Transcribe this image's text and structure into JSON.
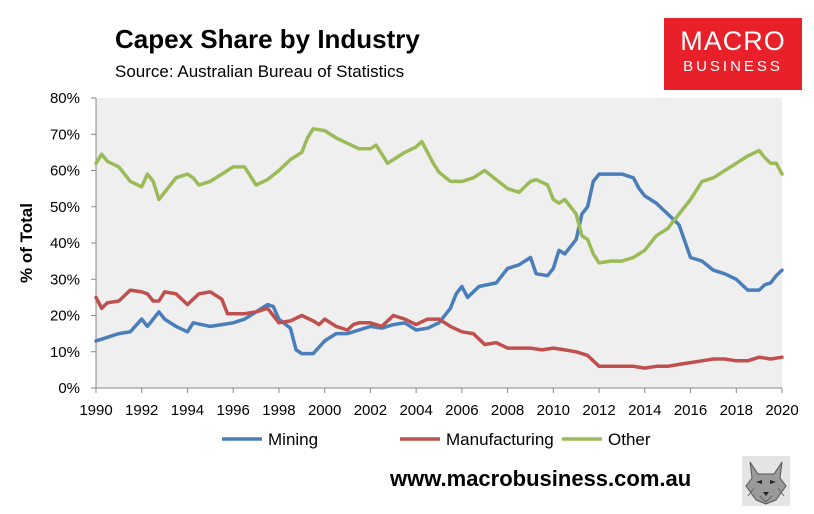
{
  "header": {
    "title": "Capex Share by Industry",
    "subtitle": "Source: Australian Bureau of Statistics"
  },
  "logo": {
    "line1": "MACRO",
    "line2": "BUSINESS",
    "color": "#e8202a"
  },
  "footer": {
    "website": "www.macrobusiness.com.au"
  },
  "chart_data": {
    "type": "line",
    "title": "Capex Share by Industry",
    "xlabel": "",
    "ylabel": "% of Total",
    "xlim": [
      1990,
      2020
    ],
    "ylim": [
      0,
      80
    ],
    "x_ticks": [
      1990,
      1992,
      1994,
      1996,
      1998,
      2000,
      2002,
      2004,
      2006,
      2008,
      2010,
      2012,
      2014,
      2016,
      2018,
      2020
    ],
    "x_tick_labels": [
      "1990",
      "1992",
      "1994",
      "1996",
      "1998",
      "2000",
      "2002",
      "2004",
      "2006",
      "2008",
      "2010",
      "2012",
      "2014",
      "2016",
      "2018",
      "2020"
    ],
    "y_ticks": [
      0,
      10,
      20,
      30,
      40,
      50,
      60,
      70,
      80
    ],
    "y_tick_labels": [
      "0%",
      "10%",
      "20%",
      "30%",
      "40%",
      "50%",
      "60%",
      "70%",
      "80%"
    ],
    "grid": false,
    "legend_position": "bottom",
    "series": [
      {
        "name": "Mining",
        "color": "#4a7ebb",
        "points": [
          [
            1990,
            13
          ],
          [
            1990.5,
            14
          ],
          [
            1991,
            15
          ],
          [
            1991.5,
            15.5
          ],
          [
            1992,
            19
          ],
          [
            1992.25,
            17
          ],
          [
            1992.75,
            21
          ],
          [
            1993,
            19
          ],
          [
            1993.5,
            17
          ],
          [
            1994,
            15.5
          ],
          [
            1994.25,
            18
          ],
          [
            1995,
            17
          ],
          [
            1995.5,
            17.5
          ],
          [
            1996,
            18
          ],
          [
            1996.5,
            19
          ],
          [
            1997,
            21
          ],
          [
            1997.5,
            23
          ],
          [
            1997.75,
            22.5
          ],
          [
            1998,
            19
          ],
          [
            1998.5,
            16.5
          ],
          [
            1998.75,
            10.5
          ],
          [
            1999,
            9.5
          ],
          [
            1999.5,
            9.5
          ],
          [
            2000,
            13
          ],
          [
            2000.5,
            15
          ],
          [
            2001,
            15
          ],
          [
            2001.5,
            16
          ],
          [
            2002,
            17
          ],
          [
            2002.5,
            16.5
          ],
          [
            2003,
            17.5
          ],
          [
            2003.5,
            18
          ],
          [
            2004,
            16
          ],
          [
            2004.5,
            16.5
          ],
          [
            2005,
            18
          ],
          [
            2005.5,
            22
          ],
          [
            2005.75,
            26
          ],
          [
            2006,
            28
          ],
          [
            2006.25,
            25
          ],
          [
            2006.75,
            28
          ],
          [
            2007.5,
            29
          ],
          [
            2008,
            33
          ],
          [
            2008.5,
            34
          ],
          [
            2009,
            36
          ],
          [
            2009.25,
            31.5
          ],
          [
            2009.75,
            31
          ],
          [
            2010,
            33
          ],
          [
            2010.25,
            38
          ],
          [
            2010.5,
            37
          ],
          [
            2011,
            41
          ],
          [
            2011.25,
            48
          ],
          [
            2011.5,
            50
          ],
          [
            2011.75,
            57
          ],
          [
            2012,
            59
          ],
          [
            2012.5,
            59
          ],
          [
            2013,
            59
          ],
          [
            2013.5,
            58
          ],
          [
            2013.75,
            55
          ],
          [
            2014,
            53
          ],
          [
            2014.5,
            51
          ],
          [
            2015,
            48
          ],
          [
            2015.5,
            45
          ],
          [
            2016,
            36
          ],
          [
            2016.5,
            35
          ],
          [
            2017,
            32.5
          ],
          [
            2017.5,
            31.5
          ],
          [
            2018,
            30
          ],
          [
            2018.5,
            27
          ],
          [
            2019,
            27
          ],
          [
            2019.25,
            28.5
          ],
          [
            2019.5,
            29
          ],
          [
            2019.75,
            31
          ],
          [
            2020,
            32.5
          ]
        ]
      },
      {
        "name": "Manufacturing",
        "color": "#c0504d",
        "points": [
          [
            1990,
            25
          ],
          [
            1990.25,
            22
          ],
          [
            1990.5,
            23.5
          ],
          [
            1991,
            24
          ],
          [
            1991.5,
            27
          ],
          [
            1992,
            26.5
          ],
          [
            1992.25,
            26
          ],
          [
            1992.5,
            24
          ],
          [
            1992.75,
            24
          ],
          [
            1993,
            26.5
          ],
          [
            1993.5,
            26
          ],
          [
            1994,
            23
          ],
          [
            1994.25,
            24.5
          ],
          [
            1994.5,
            26
          ],
          [
            1995,
            26.5
          ],
          [
            1995.5,
            24.5
          ],
          [
            1995.75,
            20.5
          ],
          [
            1996,
            20.5
          ],
          [
            1996.5,
            20.5
          ],
          [
            1997,
            21
          ],
          [
            1997.5,
            22
          ],
          [
            1997.75,
            20
          ],
          [
            1998,
            18
          ],
          [
            1998.5,
            18.5
          ],
          [
            1999,
            20
          ],
          [
            1999.5,
            18.5
          ],
          [
            1999.75,
            17.5
          ],
          [
            2000,
            19
          ],
          [
            2000.5,
            17
          ],
          [
            2001,
            16
          ],
          [
            2001.25,
            17.5
          ],
          [
            2001.5,
            18
          ],
          [
            2002,
            18
          ],
          [
            2002.5,
            17
          ],
          [
            2003,
            20
          ],
          [
            2003.5,
            19
          ],
          [
            2004,
            17.5
          ],
          [
            2004.5,
            19
          ],
          [
            2005,
            19
          ],
          [
            2005.5,
            17
          ],
          [
            2006,
            15.5
          ],
          [
            2006.5,
            15
          ],
          [
            2007,
            12
          ],
          [
            2007.5,
            12.5
          ],
          [
            2008,
            11
          ],
          [
            2008.5,
            11
          ],
          [
            2009,
            11
          ],
          [
            2009.5,
            10.5
          ],
          [
            2010,
            11
          ],
          [
            2010.5,
            10.5
          ],
          [
            2011,
            10
          ],
          [
            2011.5,
            9
          ],
          [
            2012,
            6
          ],
          [
            2012.5,
            6
          ],
          [
            2013,
            6
          ],
          [
            2013.5,
            6
          ],
          [
            2014,
            5.5
          ],
          [
            2014.5,
            6
          ],
          [
            2015,
            6
          ],
          [
            2015.5,
            6.5
          ],
          [
            2016,
            7
          ],
          [
            2016.5,
            7.5
          ],
          [
            2017,
            8
          ],
          [
            2017.5,
            8
          ],
          [
            2018,
            7.5
          ],
          [
            2018.5,
            7.5
          ],
          [
            2019,
            8.5
          ],
          [
            2019.5,
            8
          ],
          [
            2020,
            8.5
          ]
        ]
      },
      {
        "name": "Other",
        "color": "#9bbb59",
        "points": [
          [
            1990,
            62
          ],
          [
            1990.25,
            64.5
          ],
          [
            1990.5,
            62.5
          ],
          [
            1991,
            61
          ],
          [
            1991.5,
            57
          ],
          [
            1992,
            55.5
          ],
          [
            1992.25,
            59
          ],
          [
            1992.5,
            57
          ],
          [
            1992.75,
            52
          ],
          [
            1993,
            54
          ],
          [
            1993.5,
            58
          ],
          [
            1994,
            59
          ],
          [
            1994.25,
            58
          ],
          [
            1994.5,
            56
          ],
          [
            1995,
            57
          ],
          [
            1995.5,
            59
          ],
          [
            1996,
            61
          ],
          [
            1996.5,
            61
          ],
          [
            1997,
            56
          ],
          [
            1997.5,
            57.5
          ],
          [
            1998,
            60
          ],
          [
            1998.5,
            63
          ],
          [
            1999,
            65
          ],
          [
            1999.25,
            69
          ],
          [
            1999.5,
            71.5
          ],
          [
            2000,
            71
          ],
          [
            2000.5,
            69
          ],
          [
            2001,
            67.5
          ],
          [
            2001.5,
            66
          ],
          [
            2002,
            66
          ],
          [
            2002.25,
            67
          ],
          [
            2002.75,
            62
          ],
          [
            2003,
            63
          ],
          [
            2003.5,
            65
          ],
          [
            2004,
            66.5
          ],
          [
            2004.25,
            68
          ],
          [
            2004.75,
            62
          ],
          [
            2005,
            59.5
          ],
          [
            2005.5,
            57
          ],
          [
            2006,
            57
          ],
          [
            2006.5,
            58
          ],
          [
            2007,
            60
          ],
          [
            2007.5,
            57.5
          ],
          [
            2008,
            55
          ],
          [
            2008.5,
            54
          ],
          [
            2009,
            57
          ],
          [
            2009.25,
            57.5
          ],
          [
            2009.75,
            56
          ],
          [
            2010,
            52
          ],
          [
            2010.25,
            51
          ],
          [
            2010.5,
            52
          ],
          [
            2011,
            48
          ],
          [
            2011.25,
            42
          ],
          [
            2011.5,
            41
          ],
          [
            2011.75,
            37
          ],
          [
            2012,
            34.5
          ],
          [
            2012.5,
            35
          ],
          [
            2013,
            35
          ],
          [
            2013.5,
            36
          ],
          [
            2014,
            38
          ],
          [
            2014.5,
            42
          ],
          [
            2015,
            44
          ],
          [
            2015.5,
            48
          ],
          [
            2016,
            52
          ],
          [
            2016.5,
            57
          ],
          [
            2017,
            58
          ],
          [
            2017.5,
            60
          ],
          [
            2018,
            62
          ],
          [
            2018.5,
            64
          ],
          [
            2019,
            65.5
          ],
          [
            2019.25,
            63.5
          ],
          [
            2019.5,
            62
          ],
          [
            2019.75,
            62
          ],
          [
            2020,
            59
          ]
        ]
      }
    ]
  }
}
